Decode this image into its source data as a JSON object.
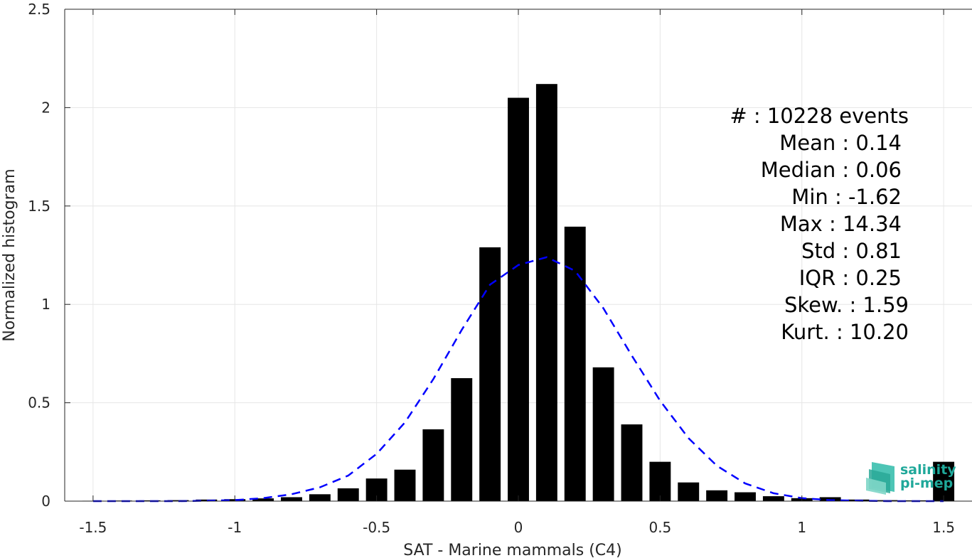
{
  "chart_data": {
    "type": "bar",
    "xlabel": "SAT - Marine mammals (C4)",
    "ylabel": "Normalized histogram",
    "xlim": [
      -1.6,
      1.6
    ],
    "ylim": [
      0,
      2.5
    ],
    "xticks": [
      -1.5,
      -1,
      -0.5,
      0,
      0.5,
      1,
      1.5
    ],
    "xtick_labels": [
      "-1.5",
      "-1",
      "-0.5",
      "0",
      "0.5",
      "1",
      "1.5"
    ],
    "yticks": [
      0,
      0.5,
      1,
      1.5,
      2,
      2.5
    ],
    "ytick_labels": [
      "0",
      "0.5",
      "1",
      "1.5",
      "2",
      "2.5"
    ],
    "grid": true,
    "bin_width": 0.1,
    "bins": {
      "x": [
        -1.5,
        -1.4,
        -1.3,
        -1.2,
        -1.1,
        -1.0,
        -0.9,
        -0.8,
        -0.7,
        -0.6,
        -0.5,
        -0.4,
        -0.3,
        -0.2,
        -0.1,
        0.0,
        0.1,
        0.2,
        0.3,
        0.4,
        0.5,
        0.6,
        0.7,
        0.8,
        0.9,
        1.0,
        1.1,
        1.2,
        1.3,
        1.4,
        1.5
      ],
      "y": [
        0.002,
        0.003,
        0.004,
        0.005,
        0.008,
        0.01,
        0.014,
        0.02,
        0.035,
        0.065,
        0.115,
        0.16,
        0.365,
        0.625,
        1.29,
        2.05,
        2.12,
        1.395,
        0.68,
        0.39,
        0.2,
        0.095,
        0.055,
        0.045,
        0.025,
        0.015,
        0.02,
        0.008,
        0.005,
        0.004,
        0.2
      ]
    },
    "fit_curve": {
      "style": "dashed",
      "color": "#0000ff",
      "x": [
        -1.5,
        -1.4,
        -1.3,
        -1.2,
        -1.1,
        -1.0,
        -0.9,
        -0.8,
        -0.7,
        -0.6,
        -0.5,
        -0.4,
        -0.3,
        -0.2,
        -0.1,
        0.0,
        0.1,
        0.2,
        0.3,
        0.4,
        0.5,
        0.6,
        0.7,
        0.8,
        0.9,
        1.0,
        1.1,
        1.2,
        1.3,
        1.4,
        1.5
      ],
      "y": [
        0.0,
        0.0,
        0.0,
        0.0,
        0.002,
        0.005,
        0.015,
        0.035,
        0.07,
        0.13,
        0.24,
        0.4,
        0.62,
        0.87,
        1.1,
        1.2,
        1.24,
        1.17,
        0.98,
        0.74,
        0.51,
        0.32,
        0.18,
        0.09,
        0.04,
        0.015,
        0.005,
        0.002,
        0.0,
        0.0,
        0.0
      ]
    },
    "bar_color": "#000000"
  },
  "stats": {
    "lines": [
      "#  : 10228 events",
      "Mean : 0.14",
      "Median : 0.06",
      "Min : -1.62",
      "Max : 14.34",
      "Std : 0.81",
      "IQR : 0.25",
      "Skew. : 1.59",
      "Kurt. : 10.20"
    ]
  },
  "logo": {
    "line1": "salinity",
    "line2": "pi-mep",
    "color": "#1fa89a"
  }
}
